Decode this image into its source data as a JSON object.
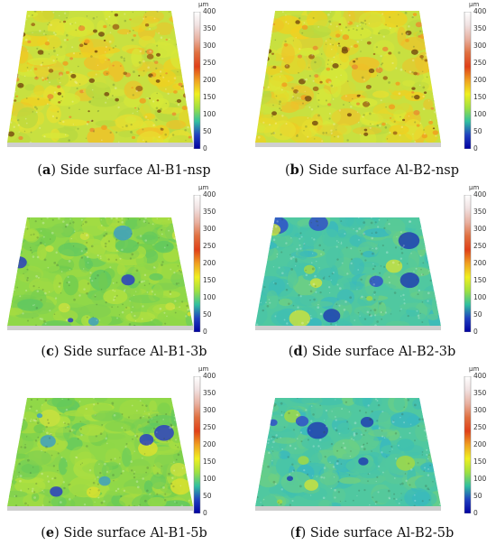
{
  "colorbar": {
    "unit": "μm",
    "ticks": [
      "400",
      "350",
      "300",
      "250",
      "200",
      "150",
      "100",
      "50",
      "0"
    ],
    "colors": [
      "#ffffff",
      "#f0e0e0",
      "#e8b0a0",
      "#e07040",
      "#e04018",
      "#f0a020",
      "#f0f020",
      "#a0e040",
      "#30c0a0",
      "#2040c0",
      "#0000a0"
    ]
  },
  "panels": [
    {
      "letter": "a",
      "text": "Side surface Al-B1-nsp",
      "tone": "yellow"
    },
    {
      "letter": "b",
      "text": "Side surface Al-B2-nsp",
      "tone": "yellow"
    },
    {
      "letter": "c",
      "text": "Side surface Al-B1-3b",
      "tone": "green"
    },
    {
      "letter": "d",
      "text": "Side surface Al-B2-3b",
      "tone": "cyan"
    },
    {
      "letter": "e",
      "text": "Side surface Al-B1-5b",
      "tone": "green"
    },
    {
      "letter": "f",
      "text": "Side surface Al-B2-5b",
      "tone": "cyan"
    }
  ]
}
